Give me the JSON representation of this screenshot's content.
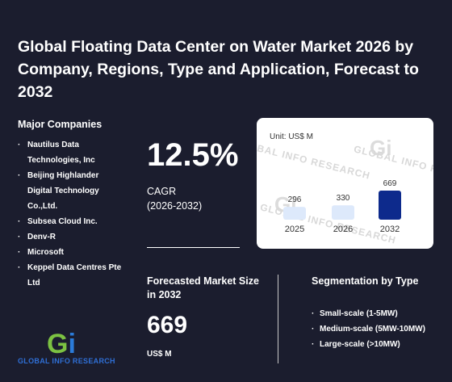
{
  "header": {
    "title": "Global Floating Data Center on Water Market 2026 by Company, Regions, Type and Application, Forecast to 2032"
  },
  "companies": {
    "heading": "Major Companies",
    "items": [
      "Nautilus Data Technologies, Inc",
      "Beijing Highlander Digital Technology Co.,Ltd.",
      "Subsea Cloud Inc.",
      "Denv-R",
      "Microsoft",
      "Keppel Data Centres Pte Ltd"
    ]
  },
  "cagr": {
    "value": "12.5%",
    "label": "CAGR",
    "period": "(2026-2032)"
  },
  "forecast": {
    "label": "Forecasted Market Size in 2032",
    "value": "669",
    "unit": "US$ M"
  },
  "segmentation": {
    "heading": "Segmentation by Type",
    "items": [
      "Small-scale (1-5MW)",
      "Medium-scale (5MW-10MW)",
      "Large-scale (>10MW)"
    ]
  },
  "watermark": {
    "text": "GLOBAL INFO RESEARCH",
    "logo": "Gi"
  },
  "logo": {
    "mark_g": "G",
    "mark_i": "i",
    "text": "GLOBAL INFO RESEARCH"
  },
  "colors": {
    "background": "#1b1d2e",
    "bar_light": "#dde9fb",
    "bar_highlight": "#0d2a8c",
    "logo_green": "#7cc242",
    "logo_blue": "#2b7bd9"
  },
  "chart_data": {
    "type": "bar",
    "unit_label": "Unit: US$ M",
    "categories": [
      "2025",
      "2026",
      "2032"
    ],
    "values": [
      296,
      330,
      669
    ],
    "highlight_index": 2
  }
}
